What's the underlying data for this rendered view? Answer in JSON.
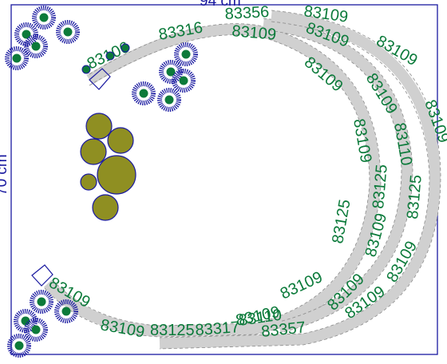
{
  "dimensions": {
    "width_label": "94 cm",
    "height_label": "70 cm"
  },
  "track_pieces": [
    "83356",
    "83316",
    "83109",
    "83109",
    "83106",
    "83109",
    "83109",
    "83109",
    "83109",
    "83109",
    "83110",
    "83109",
    "83125",
    "83125",
    "83125",
    "83109",
    "83109",
    "83109",
    "83109",
    "83109",
    "83109",
    "83109",
    "83109",
    "83125",
    "83317",
    "83110",
    "83357"
  ],
  "palette": {
    "frame": "#1a1aa0",
    "track_label": "#0b7a3a",
    "flower_petal": "#1a1aa0",
    "flower_center": "#0d7a3a",
    "tree_fill": "#8f8f22"
  },
  "scenery": {
    "flowers_icon": "flower-icon",
    "trees_icon": "tree-icon",
    "buffer_icon": "buffer-stop-icon"
  }
}
